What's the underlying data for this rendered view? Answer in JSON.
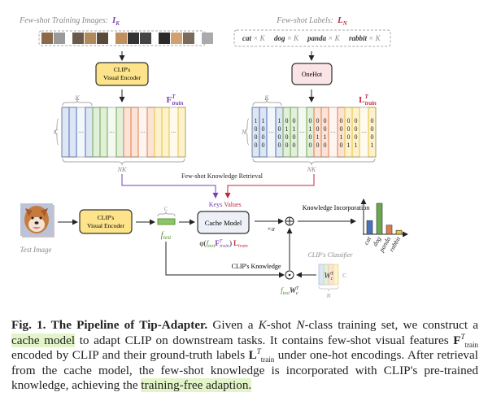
{
  "top_left": {
    "title": "Few-shot Training Images:",
    "title_symbol": {
      "base": "I",
      "sub": "K"
    },
    "encoder": {
      "line1": "CLIP's",
      "line2": "Visual Encoder"
    },
    "brace_k": "K",
    "dim_c": "C",
    "dim_nk": "NK",
    "feature_label": {
      "base": "F",
      "sup": "T",
      "sub": "train"
    }
  },
  "top_right": {
    "title": "Few-shot Labels:",
    "title_symbol": {
      "base": "L",
      "sub": "N"
    },
    "labels": [
      {
        "name": "cat",
        "mult": "× K"
      },
      {
        "name": "dog",
        "mult": "× K"
      },
      {
        "name": "panda",
        "mult": "× K"
      },
      {
        "name": "rabbit",
        "mult": "× K"
      }
    ],
    "onehot": "OneHot",
    "brace_k": "K",
    "dim_n": "N",
    "dim_nk": "NK",
    "label_label": {
      "base": "L",
      "sup": "T",
      "sub": "train"
    },
    "ellipsis": "···"
  },
  "group_colors": [
    "#4a72b8",
    "#6aa84f",
    "#e07b4a",
    "#e8c23a"
  ],
  "group_fills": [
    "#dde6f4",
    "#e2efd9",
    "#fbe3d6",
    "#fdf2cc"
  ],
  "retrieval": {
    "title": "Few-shot  Knowledge Retrieval",
    "keys": "Keys",
    "values": "Values"
  },
  "colors": {
    "keys": "#7a3fb0",
    "values": "#c0283a",
    "encoder_fill": "#fde38a",
    "onehot_fill": "#fbe4e6",
    "cache_fill": "#eef0f8",
    "ftest": "#6aa84f"
  },
  "bottom": {
    "test_image_label": "Test Image",
    "encoder": {
      "line1": "CLIP's",
      "line2": "Visual Encoder"
    },
    "ftest_dim": "C",
    "ftest": {
      "base": "f",
      "sub": "test"
    },
    "cache_model": "Cache Model",
    "formula": {
      "phi": "φ(",
      "f": "f",
      "fsub": "test",
      "F": "F",
      "Fsup": "T",
      "Fsub": "train",
      "close": ")",
      "L": "L",
      "Lsub": "train"
    },
    "alpha": "×α",
    "knowledge_incorporation": "Knowledge Incorporation",
    "clip_knowledge": "CLIP's  Knowledge",
    "classifier_title": "CLIP's Classifier",
    "classifier": {
      "base": "W",
      "sup": "T",
      "sub": "c"
    },
    "classifier_dim_c": "C",
    "classifier_dim_n": "N",
    "product": {
      "f": "f",
      "fsub": "test",
      "W": "W",
      "Wsup": "T",
      "Wsub": "c"
    }
  },
  "chart_data": {
    "type": "bar",
    "categories": [
      "cat",
      "dog",
      "panda",
      "rabbit"
    ],
    "values": [
      0.42,
      0.95,
      0.28,
      0.12
    ],
    "colors": [
      "#4a72b8",
      "#6aa84f",
      "#e07b4a",
      "#e8c23a"
    ],
    "title": "",
    "xlabel": "",
    "ylabel": ""
  },
  "caption": {
    "fig": "Fig. 1.",
    "title": "The Pipeline of Tip-Adapter.",
    "t1": " Given a ",
    "K": "K",
    "t2": "-shot ",
    "N": "N",
    "t3": "-class training set, we construct a ",
    "hl1": "cache model",
    "t4": " to adapt CLIP on downstream tasks. It contains few-shot visual features ",
    "F": "F",
    "Fsup": "T",
    "Fsub": "train",
    "t5": " encoded by CLIP and their ground-truth labels ",
    "L": "L",
    "Lsup": "T",
    "Lsub": "train",
    "t6": " under one-hot encodings. After retrieval from the cache model, the few-shot knowledge is incorporated with CLIP's pre-trained knowledge, achieving the ",
    "hl2": "training-free adaption."
  }
}
